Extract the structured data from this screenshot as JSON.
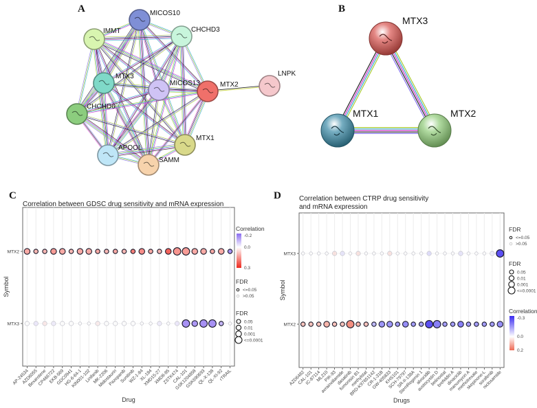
{
  "panels": {
    "A": {
      "letter": "A",
      "type": "network",
      "nodes": [
        {
          "id": "MICOS10",
          "label": "MICOS10",
          "color": "#7f8fd6"
        },
        {
          "id": "IMMT",
          "label": "IMMT",
          "color": "#d8f5b0"
        },
        {
          "id": "CHCHD3",
          "label": "CHCHD3",
          "color": "#c8f5dc"
        },
        {
          "id": "MTX3",
          "label": "MTX3",
          "color": "#7fd9c8"
        },
        {
          "id": "MICOS13",
          "label": "MICOS13",
          "color": "#cfc3f5"
        },
        {
          "id": "MTX2",
          "label": "MTX2",
          "color": "#f0706a"
        },
        {
          "id": "LNPK",
          "label": "LNPK",
          "color": "#f5c8cc"
        },
        {
          "id": "CHCHD6",
          "label": "CHCHD6",
          "color": "#8ccd7e"
        },
        {
          "id": "MTX1",
          "label": "MTX1",
          "color": "#d9d98a"
        },
        {
          "id": "APOOL",
          "label": "APOOL",
          "color": "#bfe6f7"
        },
        {
          "id": "SAMM",
          "label": "SAMM",
          "color": "#f7d3ac"
        }
      ],
      "edge_colors": [
        "#222222",
        "#cc33cc",
        "#33aacc",
        "#aacc33",
        "#8877ee"
      ]
    },
    "B": {
      "letter": "B",
      "type": "network",
      "nodes": [
        {
          "id": "MTX3",
          "label": "MTX3",
          "color": "#d9544f"
        },
        {
          "id": "MTX1",
          "label": "MTX1",
          "color": "#3a8aa6"
        },
        {
          "id": "MTX2",
          "label": "MTX2",
          "color": "#8fcc78"
        }
      ],
      "edge_colors": [
        "#aacc33",
        "#33aacc",
        "#cc33cc",
        "#222222",
        "#8877ee"
      ]
    },
    "C": {
      "letter": "C"
    },
    "D": {
      "letter": "D"
    }
  },
  "chart_data": [
    {
      "id": "C",
      "type": "scatter",
      "subtype": "bubble",
      "title": "Correlation between GDSC drug sensitivity and mRNA expression",
      "xlabel": "Drug",
      "ylabel": "Symbol",
      "rows": [
        "MTX2",
        "MTX3"
      ],
      "categories": [
        "AP-24534",
        "AZD6055",
        "Bexarotene",
        "CP466722",
        "EKB-569",
        "GDC0941",
        "HG-6-64-1",
        "KIN001-102",
        "Linifanib",
        "MK-2206",
        "Midostaurin",
        "Pazopanib",
        "Sunitinib",
        "WZ-1-84",
        "XL-184",
        "XMD15-27",
        "XMD8-85",
        "ZSTK474",
        "CAL-101",
        "GSK1204858",
        "GSK690693",
        "QL-X-138",
        "QL-XI-92",
        "rTRAIL"
      ],
      "series": [
        {
          "name": "MTX2",
          "correlation": [
            0.12,
            0.1,
            0.1,
            0.14,
            0.12,
            0.1,
            0.12,
            0.12,
            0.12,
            0.1,
            0.12,
            0.1,
            0.18,
            0.16,
            0.12,
            0.1,
            0.22,
            0.15,
            0.14,
            0.12,
            0.12,
            0.12,
            0.12,
            -0.15
          ],
          "fdr_significant": [
            true,
            true,
            true,
            true,
            true,
            true,
            true,
            true,
            true,
            true,
            true,
            true,
            true,
            true,
            true,
            true,
            true,
            true,
            true,
            true,
            true,
            true,
            true,
            true
          ],
          "size_level": [
            2,
            1,
            1,
            2,
            2,
            1,
            2,
            2,
            1,
            1,
            1,
            1,
            1,
            2,
            1,
            1,
            2,
            3,
            3,
            2,
            2,
            1,
            2,
            1
          ]
        },
        {
          "name": "MTX3",
          "correlation": [
            0.0,
            -0.05,
            0.05,
            -0.04,
            0.0,
            0.0,
            0.0,
            0.0,
            0.04,
            0.0,
            0.0,
            0.0,
            0.0,
            0.0,
            0.0,
            -0.04,
            0.0,
            -0.05,
            -0.15,
            -0.14,
            -0.15,
            -0.15,
            -0.1,
            0.0
          ],
          "fdr_significant": [
            false,
            false,
            false,
            false,
            false,
            false,
            false,
            false,
            false,
            false,
            false,
            false,
            false,
            false,
            false,
            false,
            false,
            false,
            true,
            true,
            true,
            true,
            true,
            false
          ],
          "size_level": [
            1,
            1,
            1,
            1,
            1,
            1,
            0,
            0,
            1,
            1,
            1,
            1,
            1,
            0,
            0,
            1,
            0,
            1,
            3,
            2,
            3,
            3,
            1,
            0
          ]
        }
      ],
      "legend": {
        "correlation_title": "Correlation",
        "correlation_ticks": [
          "-0.2",
          "0.0",
          "0.3"
        ],
        "correlation_range": [
          -0.2,
          0.3
        ],
        "fdr_color_title": "FDR",
        "fdr_color_items": [
          "<=0.05",
          ">0.05"
        ],
        "fdr_size_title": "FDR",
        "fdr_size_items": [
          "0.05",
          "0.01",
          "0.001",
          "<=0.0001"
        ],
        "colors": {
          "neg": "#8a6cf0",
          "zero": "#ffffff",
          "pos": "#ee2a1f"
        }
      }
    },
    {
      "id": "D",
      "type": "scatter",
      "subtype": "bubble",
      "title": "Correlation between CTRP drug sensitivity and mRNA expression",
      "title_lines": [
        "Correlation between CTRP drug sensitivity",
        "and mRNA expression"
      ],
      "xlabel": "Drugs",
      "ylabel": "Symbol",
      "rows": [
        "MTX3",
        "MTX2"
      ],
      "categories": [
        "AZD6482",
        "CAL-101",
        "IC-87114",
        "ML210",
        "PIK-93",
        "avrainvillamide",
        "dasatinib",
        "fumonisin B1",
        "methylstat",
        "BRD-K97651142",
        "CR-1-31B",
        "GW-405833",
        "KHS101",
        "SCH-79797",
        "SR-II-138A",
        "StemRegenin 1",
        "alvocidib",
        "austocystin D",
        "belinostat",
        "brefeldin A",
        "dinaciclib",
        "manumycin A",
        "methotrexate",
        "skepinone-L",
        "sorafenib",
        "niclosamide"
      ],
      "series": [
        {
          "name": "MTX3",
          "correlation": [
            0.0,
            0.0,
            0.0,
            0.0,
            0.06,
            -0.06,
            0.0,
            0.06,
            0.0,
            0.0,
            0.0,
            0.06,
            0.0,
            0.0,
            0.0,
            0.0,
            -0.08,
            0.0,
            0.0,
            0.0,
            -0.06,
            0.0,
            0.0,
            0.0,
            -0.04,
            -0.25
          ],
          "fdr_significant": [
            false,
            false,
            false,
            false,
            false,
            false,
            false,
            false,
            false,
            false,
            false,
            false,
            false,
            false,
            false,
            false,
            false,
            false,
            false,
            false,
            false,
            false,
            false,
            false,
            false,
            true
          ],
          "size_level": [
            0,
            0,
            0,
            0,
            1,
            1,
            0,
            1,
            0,
            0,
            0,
            1,
            0,
            0,
            0,
            0,
            1,
            0,
            0,
            0,
            1,
            0,
            0,
            0,
            1,
            3
          ]
        },
        {
          "name": "MTX2",
          "correlation": [
            0.08,
            0.08,
            0.08,
            0.1,
            0.08,
            0.08,
            0.15,
            0.1,
            0.08,
            -0.1,
            -0.15,
            -0.15,
            -0.14,
            -0.16,
            -0.14,
            -0.14,
            -0.25,
            -0.18,
            -0.14,
            -0.14,
            -0.18,
            -0.14,
            -0.14,
            -0.14,
            -0.14,
            -0.16
          ],
          "fdr_significant": [
            true,
            true,
            true,
            true,
            true,
            true,
            true,
            true,
            true,
            true,
            true,
            true,
            true,
            true,
            true,
            true,
            true,
            true,
            true,
            true,
            true,
            true,
            true,
            true,
            true,
            true
          ],
          "size_level": [
            1,
            1,
            1,
            2,
            1,
            1,
            3,
            1,
            1,
            1,
            2,
            2,
            1,
            2,
            1,
            1,
            3,
            3,
            1,
            1,
            2,
            1,
            1,
            1,
            1,
            2
          ]
        }
      ],
      "legend": {
        "fdr_color_title": "FDR",
        "fdr_color_items": [
          "<=0.05",
          ">0.05"
        ],
        "fdr_size_title": "FDR",
        "fdr_size_items": [
          "0.05",
          "0.01",
          "0.001",
          "<=0.0001"
        ],
        "correlation_title": "Correlation",
        "correlation_ticks": [
          "-0.3",
          "0.0",
          "0.2"
        ],
        "correlation_range": [
          -0.3,
          0.2
        ],
        "colors": {
          "neg": "#3b2cf0",
          "zero": "#ffffff",
          "pos": "#ee6a55"
        }
      }
    }
  ]
}
